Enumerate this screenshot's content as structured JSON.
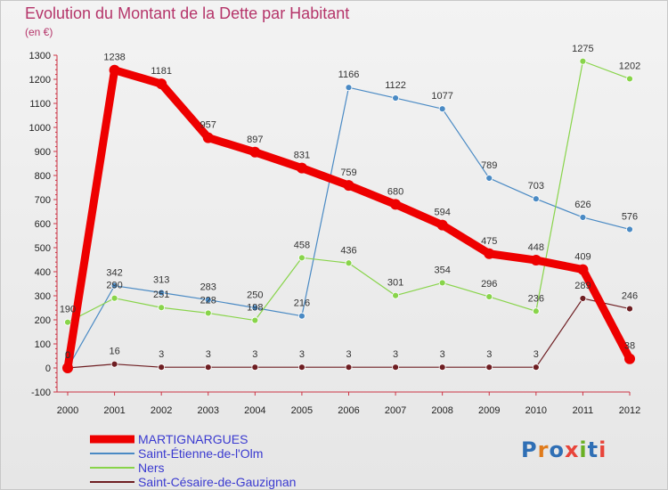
{
  "header": {
    "title": "Evolution du Montant de la Dette par Habitant",
    "unit": "(en €)"
  },
  "logo": {
    "text": "Proxiti",
    "letter_colors": [
      "#2f6fb5",
      "#e07b1b",
      "#2f6fb5",
      "#e8443a",
      "#6ab023",
      "#2f6fb5",
      "#e8443a"
    ]
  },
  "chart_data": {
    "type": "line",
    "x": [
      2000,
      2001,
      2002,
      2003,
      2004,
      2005,
      2006,
      2007,
      2008,
      2009,
      2010,
      2011,
      2012
    ],
    "ylim": [
      -100,
      1300
    ],
    "yticks": [
      -100,
      0,
      100,
      200,
      300,
      400,
      500,
      600,
      700,
      800,
      900,
      1000,
      1100,
      1200,
      1300
    ],
    "grid": false,
    "legend_position": "bottom-left",
    "series": [
      {
        "name": "MARTIGNARGUES",
        "color": "#ee0000",
        "values": [
          0,
          1238,
          1181,
          957,
          897,
          831,
          759,
          680,
          594,
          475,
          448,
          409,
          38
        ],
        "labels": [
          "0",
          "1238",
          "1181",
          "957",
          "897",
          "831",
          "759",
          "680",
          "594",
          "475",
          "448",
          "409",
          "38"
        ]
      },
      {
        "name": "Saint-Étienne-de-l'Olm",
        "color": "#4a8ac4",
        "values": [
          0,
          342,
          313,
          283,
          250,
          216,
          1166,
          1122,
          1077,
          789,
          703,
          626,
          576
        ],
        "labels": [
          "0",
          "342",
          "313",
          "283",
          "250",
          "216",
          "1166",
          "1122",
          "1077",
          "789",
          "703",
          "626",
          "576"
        ]
      },
      {
        "name": "Ners",
        "color": "#88d44a",
        "values": [
          190,
          290,
          251,
          228,
          198,
          458,
          436,
          301,
          354,
          296,
          236,
          1275,
          1202
        ],
        "labels": [
          "190",
          "290",
          "251",
          "228",
          "198",
          "458",
          "436",
          "301",
          "354",
          "296",
          "236",
          "1275",
          "1202"
        ]
      },
      {
        "name": "Saint-Césaire-de-Gauzignan",
        "color": "#6e1e22",
        "values": [
          0,
          16,
          3,
          3,
          3,
          3,
          3,
          3,
          3,
          3,
          3,
          289,
          246
        ],
        "labels": [
          "0",
          "16",
          "3",
          "3",
          "3",
          "3",
          "3",
          "3",
          "3",
          "3",
          "3",
          "289",
          "246"
        ]
      }
    ]
  }
}
